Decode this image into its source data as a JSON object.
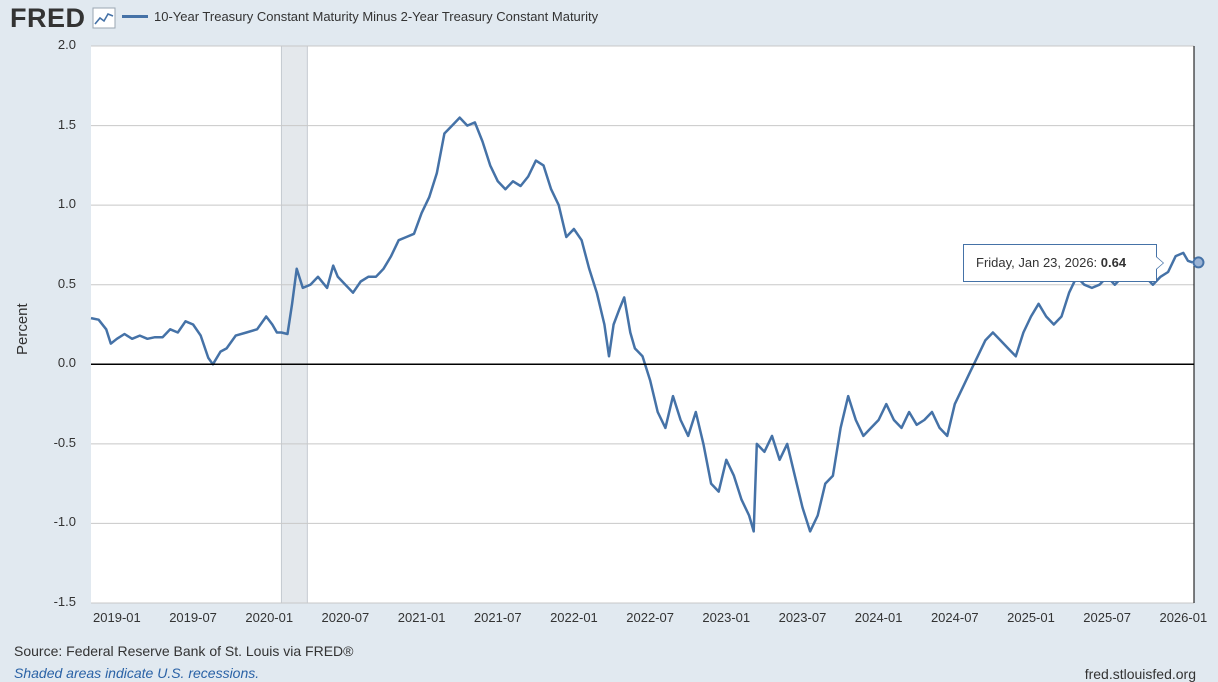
{
  "header": {
    "logo_text": "FRED",
    "legend_label": "10-Year Treasury Constant Maturity Minus 2-Year Treasury Constant Maturity"
  },
  "footer": {
    "source": "Source: Federal Reserve Bank of St. Louis via FRED®",
    "shaded_note": "Shaded areas indicate U.S. recessions.",
    "site": "fred.stlouisfed.org"
  },
  "tooltip": {
    "date": "Friday, Jan 23, 2026:",
    "value": "0.64"
  },
  "colors": {
    "series": "#4572a7",
    "background": "#e1e9f0",
    "plot": "#ffffff",
    "recession": "#e4e8ec",
    "grid": "#c8c8c8"
  },
  "chart_data": {
    "type": "line",
    "title": "10-Year Treasury Constant Maturity Minus 2-Year Treasury Constant Maturity",
    "xlabel": "",
    "ylabel": "Percent",
    "ylim": [
      -1.5,
      2.0
    ],
    "xlim": [
      2018.83,
      2026.07
    ],
    "yticks": [
      {
        "value": 2.0,
        "label": "2.0"
      },
      {
        "value": 1.5,
        "label": "1.5"
      },
      {
        "value": 1.0,
        "label": "1.0"
      },
      {
        "value": 0.5,
        "label": "0.5"
      },
      {
        "value": 0.0,
        "label": "0.0"
      },
      {
        "value": -0.5,
        "label": "-0.5"
      },
      {
        "value": -1.0,
        "label": "-1.0"
      },
      {
        "value": -1.5,
        "label": "-1.5"
      }
    ],
    "xticks": [
      {
        "value": 2019.0,
        "label": "2019-01"
      },
      {
        "value": 2019.5,
        "label": "2019-07"
      },
      {
        "value": 2020.0,
        "label": "2020-01"
      },
      {
        "value": 2020.5,
        "label": "2020-07"
      },
      {
        "value": 2021.0,
        "label": "2021-01"
      },
      {
        "value": 2021.5,
        "label": "2021-07"
      },
      {
        "value": 2022.0,
        "label": "2022-01"
      },
      {
        "value": 2022.5,
        "label": "2022-07"
      },
      {
        "value": 2023.0,
        "label": "2023-01"
      },
      {
        "value": 2023.5,
        "label": "2023-07"
      },
      {
        "value": 2024.0,
        "label": "2024-01"
      },
      {
        "value": 2024.5,
        "label": "2024-07"
      },
      {
        "value": 2025.0,
        "label": "2025-01"
      },
      {
        "value": 2025.5,
        "label": "2025-07"
      },
      {
        "value": 2026.0,
        "label": "2026-01"
      }
    ],
    "recessions": [
      {
        "start": 2020.08,
        "end": 2020.25
      }
    ],
    "series": [
      {
        "name": "10-Year Treasury Constant Maturity Minus 2-Year Treasury Constant Maturity",
        "points": [
          [
            2018.83,
            0.29
          ],
          [
            2018.88,
            0.28
          ],
          [
            2018.93,
            0.22
          ],
          [
            2018.96,
            0.13
          ],
          [
            2019.0,
            0.16
          ],
          [
            2019.05,
            0.19
          ],
          [
            2019.1,
            0.16
          ],
          [
            2019.15,
            0.18
          ],
          [
            2019.2,
            0.16
          ],
          [
            2019.25,
            0.17
          ],
          [
            2019.3,
            0.17
          ],
          [
            2019.35,
            0.22
          ],
          [
            2019.4,
            0.2
          ],
          [
            2019.45,
            0.27
          ],
          [
            2019.5,
            0.25
          ],
          [
            2019.55,
            0.18
          ],
          [
            2019.6,
            0.04
          ],
          [
            2019.63,
            0.0
          ],
          [
            2019.68,
            0.08
          ],
          [
            2019.72,
            0.1
          ],
          [
            2019.78,
            0.18
          ],
          [
            2019.85,
            0.2
          ],
          [
            2019.92,
            0.22
          ],
          [
            2019.98,
            0.3
          ],
          [
            2020.02,
            0.25
          ],
          [
            2020.05,
            0.2
          ],
          [
            2020.08,
            0.2
          ],
          [
            2020.12,
            0.19
          ],
          [
            2020.15,
            0.38
          ],
          [
            2020.18,
            0.6
          ],
          [
            2020.22,
            0.48
          ],
          [
            2020.27,
            0.5
          ],
          [
            2020.32,
            0.55
          ],
          [
            2020.38,
            0.48
          ],
          [
            2020.42,
            0.62
          ],
          [
            2020.45,
            0.55
          ],
          [
            2020.5,
            0.5
          ],
          [
            2020.55,
            0.45
          ],
          [
            2020.6,
            0.52
          ],
          [
            2020.65,
            0.55
          ],
          [
            2020.7,
            0.55
          ],
          [
            2020.75,
            0.6
          ],
          [
            2020.8,
            0.68
          ],
          [
            2020.85,
            0.78
          ],
          [
            2020.9,
            0.8
          ],
          [
            2020.95,
            0.82
          ],
          [
            2021.0,
            0.95
          ],
          [
            2021.05,
            1.05
          ],
          [
            2021.1,
            1.2
          ],
          [
            2021.15,
            1.45
          ],
          [
            2021.2,
            1.5
          ],
          [
            2021.25,
            1.55
          ],
          [
            2021.3,
            1.5
          ],
          [
            2021.35,
            1.52
          ],
          [
            2021.4,
            1.4
          ],
          [
            2021.45,
            1.25
          ],
          [
            2021.5,
            1.15
          ],
          [
            2021.55,
            1.1
          ],
          [
            2021.6,
            1.15
          ],
          [
            2021.65,
            1.12
          ],
          [
            2021.7,
            1.18
          ],
          [
            2021.75,
            1.28
          ],
          [
            2021.8,
            1.25
          ],
          [
            2021.85,
            1.1
          ],
          [
            2021.9,
            1.0
          ],
          [
            2021.95,
            0.8
          ],
          [
            2022.0,
            0.85
          ],
          [
            2022.05,
            0.78
          ],
          [
            2022.1,
            0.6
          ],
          [
            2022.15,
            0.45
          ],
          [
            2022.2,
            0.25
          ],
          [
            2022.23,
            0.05
          ],
          [
            2022.26,
            0.25
          ],
          [
            2022.3,
            0.35
          ],
          [
            2022.33,
            0.42
          ],
          [
            2022.37,
            0.2
          ],
          [
            2022.4,
            0.1
          ],
          [
            2022.45,
            0.05
          ],
          [
            2022.5,
            -0.1
          ],
          [
            2022.55,
            -0.3
          ],
          [
            2022.6,
            -0.4
          ],
          [
            2022.65,
            -0.2
          ],
          [
            2022.7,
            -0.35
          ],
          [
            2022.75,
            -0.45
          ],
          [
            2022.8,
            -0.3
          ],
          [
            2022.85,
            -0.5
          ],
          [
            2022.9,
            -0.75
          ],
          [
            2022.95,
            -0.8
          ],
          [
            2023.0,
            -0.6
          ],
          [
            2023.05,
            -0.7
          ],
          [
            2023.1,
            -0.85
          ],
          [
            2023.15,
            -0.95
          ],
          [
            2023.18,
            -1.05
          ],
          [
            2023.2,
            -0.5
          ],
          [
            2023.25,
            -0.55
          ],
          [
            2023.3,
            -0.45
          ],
          [
            2023.35,
            -0.6
          ],
          [
            2023.4,
            -0.5
          ],
          [
            2023.45,
            -0.7
          ],
          [
            2023.5,
            -0.9
          ],
          [
            2023.55,
            -1.05
          ],
          [
            2023.6,
            -0.95
          ],
          [
            2023.65,
            -0.75
          ],
          [
            2023.7,
            -0.7
          ],
          [
            2023.75,
            -0.4
          ],
          [
            2023.8,
            -0.2
          ],
          [
            2023.85,
            -0.35
          ],
          [
            2023.9,
            -0.45
          ],
          [
            2023.95,
            -0.4
          ],
          [
            2024.0,
            -0.35
          ],
          [
            2024.05,
            -0.25
          ],
          [
            2024.1,
            -0.35
          ],
          [
            2024.15,
            -0.4
          ],
          [
            2024.2,
            -0.3
          ],
          [
            2024.25,
            -0.38
          ],
          [
            2024.3,
            -0.35
          ],
          [
            2024.35,
            -0.3
          ],
          [
            2024.4,
            -0.4
          ],
          [
            2024.45,
            -0.45
          ],
          [
            2024.5,
            -0.25
          ],
          [
            2024.55,
            -0.15
          ],
          [
            2024.6,
            -0.05
          ],
          [
            2024.65,
            0.05
          ],
          [
            2024.7,
            0.15
          ],
          [
            2024.75,
            0.2
          ],
          [
            2024.8,
            0.15
          ],
          [
            2024.85,
            0.1
          ],
          [
            2024.9,
            0.05
          ],
          [
            2024.95,
            0.2
          ],
          [
            2025.0,
            0.3
          ],
          [
            2025.05,
            0.38
          ],
          [
            2025.1,
            0.3
          ],
          [
            2025.15,
            0.25
          ],
          [
            2025.2,
            0.3
          ],
          [
            2025.25,
            0.45
          ],
          [
            2025.3,
            0.55
          ],
          [
            2025.35,
            0.5
          ],
          [
            2025.4,
            0.48
          ],
          [
            2025.45,
            0.5
          ],
          [
            2025.5,
            0.55
          ],
          [
            2025.55,
            0.5
          ],
          [
            2025.6,
            0.55
          ],
          [
            2025.65,
            0.58
          ],
          [
            2025.7,
            0.55
          ],
          [
            2025.75,
            0.55
          ],
          [
            2025.8,
            0.5
          ],
          [
            2025.85,
            0.55
          ],
          [
            2025.9,
            0.58
          ],
          [
            2025.95,
            0.68
          ],
          [
            2026.0,
            0.7
          ],
          [
            2026.03,
            0.65
          ],
          [
            2026.06,
            0.64
          ]
        ]
      }
    ],
    "annotations": [
      {
        "date": "2026-01-23",
        "value": 0.64
      }
    ]
  }
}
